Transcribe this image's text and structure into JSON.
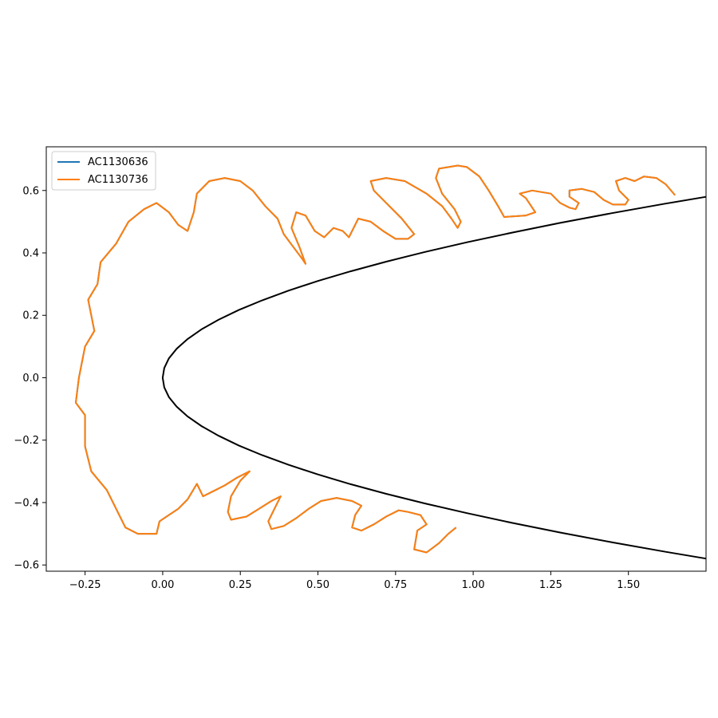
{
  "chart_data": {
    "type": "line",
    "title": "",
    "xlabel": "",
    "ylabel": "",
    "xlim": [
      -0.375,
      1.75
    ],
    "ylim": [
      -0.62,
      0.74
    ],
    "grid": false,
    "legend_position": "upper-left",
    "x_ticks": [
      "-0.25",
      "0.00",
      "0.25",
      "0.50",
      "0.75",
      "1.00",
      "1.25",
      "1.50"
    ],
    "y_ticks": [
      "-0.6",
      "-0.4",
      "-0.2",
      "0.0",
      "0.2",
      "0.4",
      "0.6"
    ],
    "series": [
      {
        "name": "AC1130636",
        "color": "#1f77b4",
        "points": [
          [
            -0.27,
            0.0
          ],
          [
            -0.25,
            0.1
          ],
          [
            -0.22,
            0.15
          ],
          [
            -0.24,
            0.25
          ],
          [
            -0.21,
            0.3
          ],
          [
            -0.2,
            0.37
          ],
          [
            -0.15,
            0.43
          ],
          [
            -0.11,
            0.5
          ],
          [
            -0.06,
            0.54
          ],
          [
            -0.02,
            0.56
          ],
          [
            0.02,
            0.53
          ],
          [
            0.05,
            0.49
          ],
          [
            0.08,
            0.47
          ],
          [
            0.1,
            0.53
          ],
          [
            0.11,
            0.59
          ],
          [
            0.15,
            0.63
          ],
          [
            0.2,
            0.64
          ],
          [
            0.25,
            0.63
          ],
          [
            0.29,
            0.6
          ],
          [
            0.33,
            0.55
          ],
          [
            0.37,
            0.51
          ],
          [
            0.39,
            0.46
          ],
          [
            0.42,
            0.42
          ],
          [
            0.45,
            0.38
          ],
          [
            0.46,
            0.365
          ],
          [
            0.44,
            0.42
          ],
          [
            0.415,
            0.48
          ],
          [
            0.43,
            0.53
          ],
          [
            0.46,
            0.52
          ],
          [
            0.49,
            0.47
          ],
          [
            0.52,
            0.45
          ],
          [
            0.55,
            0.48
          ],
          [
            0.58,
            0.47
          ],
          [
            0.6,
            0.45
          ],
          [
            0.63,
            0.51
          ],
          [
            0.67,
            0.5
          ],
          [
            0.71,
            0.47
          ],
          [
            0.75,
            0.445
          ],
          [
            0.79,
            0.445
          ],
          [
            0.81,
            0.46
          ],
          [
            0.77,
            0.51
          ],
          [
            0.72,
            0.56
          ],
          [
            0.68,
            0.6
          ],
          [
            0.67,
            0.63
          ],
          [
            0.72,
            0.64
          ],
          [
            0.78,
            0.63
          ],
          [
            0.85,
            0.59
          ],
          [
            0.9,
            0.55
          ],
          [
            0.93,
            0.51
          ],
          [
            0.95,
            0.48
          ],
          [
            0.96,
            0.5
          ],
          [
            0.94,
            0.54
          ],
          [
            0.9,
            0.59
          ],
          [
            0.88,
            0.64
          ],
          [
            0.89,
            0.67
          ],
          [
            0.95,
            0.68
          ],
          [
            0.98,
            0.675
          ],
          [
            1.02,
            0.645
          ],
          [
            1.05,
            0.6
          ],
          [
            1.08,
            0.55
          ],
          [
            1.1,
            0.515
          ],
          [
            1.17,
            0.52
          ],
          [
            1.2,
            0.53
          ],
          [
            1.17,
            0.575
          ],
          [
            1.15,
            0.59
          ],
          [
            1.19,
            0.6
          ],
          [
            1.25,
            0.59
          ],
          [
            1.28,
            0.56
          ],
          [
            1.31,
            0.545
          ],
          [
            1.33,
            0.54
          ],
          [
            1.34,
            0.56
          ],
          [
            1.31,
            0.58
          ],
          [
            1.31,
            0.6
          ],
          [
            1.35,
            0.605
          ],
          [
            1.39,
            0.595
          ],
          [
            1.42,
            0.57
          ],
          [
            1.45,
            0.555
          ],
          [
            1.49,
            0.555
          ],
          [
            1.5,
            0.57
          ],
          [
            1.47,
            0.6
          ],
          [
            1.46,
            0.63
          ],
          [
            1.49,
            0.64
          ],
          [
            1.52,
            0.63
          ],
          [
            1.55,
            0.645
          ],
          [
            1.59,
            0.64
          ],
          [
            1.62,
            0.62
          ],
          [
            1.65,
            0.585
          ]
        ],
        "lower_points": [
          [
            -0.27,
            0.0
          ],
          [
            -0.28,
            -0.08
          ],
          [
            -0.25,
            -0.12
          ],
          [
            -0.25,
            -0.22
          ],
          [
            -0.23,
            -0.3
          ],
          [
            -0.18,
            -0.36
          ],
          [
            -0.15,
            -0.42
          ],
          [
            -0.12,
            -0.48
          ],
          [
            -0.08,
            -0.5
          ],
          [
            -0.02,
            -0.5
          ],
          [
            -0.01,
            -0.46
          ],
          [
            0.02,
            -0.44
          ],
          [
            0.05,
            -0.42
          ],
          [
            0.08,
            -0.39
          ],
          [
            0.11,
            -0.34
          ],
          [
            0.13,
            -0.38
          ],
          [
            0.17,
            -0.36
          ],
          [
            0.2,
            -0.345
          ],
          [
            0.24,
            -0.32
          ],
          [
            0.28,
            -0.3
          ],
          [
            0.25,
            -0.33
          ],
          [
            0.22,
            -0.38
          ],
          [
            0.21,
            -0.43
          ],
          [
            0.22,
            -0.455
          ],
          [
            0.27,
            -0.445
          ],
          [
            0.31,
            -0.42
          ],
          [
            0.35,
            -0.395
          ],
          [
            0.38,
            -0.38
          ],
          [
            0.36,
            -0.42
          ],
          [
            0.34,
            -0.46
          ],
          [
            0.35,
            -0.485
          ],
          [
            0.39,
            -0.475
          ],
          [
            0.43,
            -0.45
          ],
          [
            0.47,
            -0.42
          ],
          [
            0.51,
            -0.395
          ],
          [
            0.56,
            -0.385
          ],
          [
            0.61,
            -0.395
          ],
          [
            0.64,
            -0.41
          ],
          [
            0.62,
            -0.44
          ],
          [
            0.61,
            -0.48
          ],
          [
            0.64,
            -0.49
          ],
          [
            0.68,
            -0.47
          ],
          [
            0.72,
            -0.445
          ],
          [
            0.76,
            -0.425
          ],
          [
            0.79,
            -0.43
          ],
          [
            0.83,
            -0.44
          ],
          [
            0.85,
            -0.47
          ],
          [
            0.82,
            -0.49
          ],
          [
            0.81,
            -0.55
          ],
          [
            0.85,
            -0.56
          ],
          [
            0.89,
            -0.53
          ],
          [
            0.92,
            -0.5
          ],
          [
            0.945,
            -0.48
          ]
        ]
      },
      {
        "name": "AC1130736",
        "color": "#ff7f0e",
        "points": [
          [
            -0.27,
            0.0
          ],
          [
            -0.25,
            0.1
          ],
          [
            -0.22,
            0.15
          ],
          [
            -0.24,
            0.25
          ],
          [
            -0.21,
            0.3
          ],
          [
            -0.2,
            0.37
          ],
          [
            -0.15,
            0.43
          ],
          [
            -0.11,
            0.5
          ],
          [
            -0.06,
            0.54
          ],
          [
            -0.02,
            0.56
          ],
          [
            0.02,
            0.53
          ],
          [
            0.05,
            0.49
          ],
          [
            0.08,
            0.47
          ],
          [
            0.1,
            0.53
          ],
          [
            0.11,
            0.59
          ],
          [
            0.15,
            0.63
          ],
          [
            0.2,
            0.64
          ],
          [
            0.25,
            0.63
          ],
          [
            0.29,
            0.6
          ],
          [
            0.33,
            0.55
          ],
          [
            0.37,
            0.51
          ],
          [
            0.39,
            0.46
          ],
          [
            0.42,
            0.42
          ],
          [
            0.45,
            0.38
          ],
          [
            0.46,
            0.365
          ],
          [
            0.44,
            0.42
          ],
          [
            0.415,
            0.48
          ],
          [
            0.43,
            0.53
          ],
          [
            0.46,
            0.52
          ],
          [
            0.49,
            0.47
          ],
          [
            0.52,
            0.45
          ],
          [
            0.55,
            0.48
          ],
          [
            0.58,
            0.47
          ],
          [
            0.6,
            0.45
          ],
          [
            0.63,
            0.51
          ],
          [
            0.67,
            0.5
          ],
          [
            0.71,
            0.47
          ],
          [
            0.75,
            0.445
          ],
          [
            0.79,
            0.445
          ],
          [
            0.81,
            0.46
          ],
          [
            0.77,
            0.51
          ],
          [
            0.72,
            0.56
          ],
          [
            0.68,
            0.6
          ],
          [
            0.67,
            0.63
          ],
          [
            0.72,
            0.64
          ],
          [
            0.78,
            0.63
          ],
          [
            0.85,
            0.59
          ],
          [
            0.9,
            0.55
          ],
          [
            0.93,
            0.51
          ],
          [
            0.95,
            0.48
          ],
          [
            0.96,
            0.5
          ],
          [
            0.94,
            0.54
          ],
          [
            0.9,
            0.59
          ],
          [
            0.88,
            0.64
          ],
          [
            0.89,
            0.67
          ],
          [
            0.95,
            0.68
          ],
          [
            0.98,
            0.675
          ],
          [
            1.02,
            0.645
          ],
          [
            1.05,
            0.6
          ],
          [
            1.08,
            0.55
          ],
          [
            1.1,
            0.515
          ],
          [
            1.17,
            0.52
          ],
          [
            1.2,
            0.53
          ],
          [
            1.17,
            0.575
          ],
          [
            1.15,
            0.59
          ],
          [
            1.19,
            0.6
          ],
          [
            1.25,
            0.59
          ],
          [
            1.28,
            0.56
          ],
          [
            1.31,
            0.545
          ],
          [
            1.33,
            0.54
          ],
          [
            1.34,
            0.56
          ],
          [
            1.31,
            0.58
          ],
          [
            1.31,
            0.6
          ],
          [
            1.35,
            0.605
          ],
          [
            1.39,
            0.595
          ],
          [
            1.42,
            0.57
          ],
          [
            1.45,
            0.555
          ],
          [
            1.49,
            0.555
          ],
          [
            1.5,
            0.57
          ],
          [
            1.47,
            0.6
          ],
          [
            1.46,
            0.63
          ],
          [
            1.49,
            0.64
          ],
          [
            1.52,
            0.63
          ],
          [
            1.55,
            0.645
          ],
          [
            1.59,
            0.64
          ],
          [
            1.62,
            0.62
          ],
          [
            1.65,
            0.585
          ]
        ],
        "lower_points": [
          [
            -0.27,
            0.0
          ],
          [
            -0.28,
            -0.08
          ],
          [
            -0.25,
            -0.12
          ],
          [
            -0.25,
            -0.22
          ],
          [
            -0.23,
            -0.3
          ],
          [
            -0.18,
            -0.36
          ],
          [
            -0.15,
            -0.42
          ],
          [
            -0.12,
            -0.48
          ],
          [
            -0.08,
            -0.5
          ],
          [
            -0.02,
            -0.5
          ],
          [
            -0.01,
            -0.46
          ],
          [
            0.02,
            -0.44
          ],
          [
            0.05,
            -0.42
          ],
          [
            0.08,
            -0.39
          ],
          [
            0.11,
            -0.34
          ],
          [
            0.13,
            -0.38
          ],
          [
            0.17,
            -0.36
          ],
          [
            0.2,
            -0.345
          ],
          [
            0.24,
            -0.32
          ],
          [
            0.28,
            -0.3
          ],
          [
            0.25,
            -0.33
          ],
          [
            0.22,
            -0.38
          ],
          [
            0.21,
            -0.43
          ],
          [
            0.22,
            -0.455
          ],
          [
            0.27,
            -0.445
          ],
          [
            0.31,
            -0.42
          ],
          [
            0.35,
            -0.395
          ],
          [
            0.38,
            -0.38
          ],
          [
            0.36,
            -0.42
          ],
          [
            0.34,
            -0.46
          ],
          [
            0.35,
            -0.485
          ],
          [
            0.39,
            -0.475
          ],
          [
            0.43,
            -0.45
          ],
          [
            0.47,
            -0.42
          ],
          [
            0.51,
            -0.395
          ],
          [
            0.56,
            -0.385
          ],
          [
            0.61,
            -0.395
          ],
          [
            0.64,
            -0.41
          ],
          [
            0.62,
            -0.44
          ],
          [
            0.61,
            -0.48
          ],
          [
            0.64,
            -0.49
          ],
          [
            0.68,
            -0.47
          ],
          [
            0.72,
            -0.445
          ],
          [
            0.76,
            -0.425
          ],
          [
            0.79,
            -0.43
          ],
          [
            0.83,
            -0.44
          ],
          [
            0.85,
            -0.47
          ],
          [
            0.82,
            -0.49
          ],
          [
            0.81,
            -0.55
          ],
          [
            0.85,
            -0.56
          ],
          [
            0.89,
            -0.53
          ],
          [
            0.92,
            -0.5
          ],
          [
            0.945,
            -0.48
          ]
        ]
      }
    ],
    "reference_curve": {
      "color": "#000000",
      "points": [
        [
          0.0,
          0.0
        ],
        [
          0.005,
          0.05
        ],
        [
          0.02,
          0.1
        ],
        [
          0.045,
          0.15
        ],
        [
          0.08,
          0.2
        ],
        [
          0.125,
          0.25
        ],
        [
          0.18,
          0.3
        ],
        [
          0.245,
          0.35
        ],
        [
          0.32,
          0.4
        ],
        [
          0.405,
          0.45
        ],
        [
          0.5,
          0.5
        ],
        [
          0.605,
          0.55
        ],
        [
          0.72,
          0.6
        ],
        [
          0.845,
          0.65
        ],
        [
          0.98,
          0.7
        ],
        [
          1.125,
          0.75
        ],
        [
          1.28,
          0.8
        ],
        [
          1.445,
          0.85
        ],
        [
          1.62,
          0.9
        ],
        [
          1.75,
          0.935
        ]
      ],
      "y_scale": 0.62
    }
  }
}
